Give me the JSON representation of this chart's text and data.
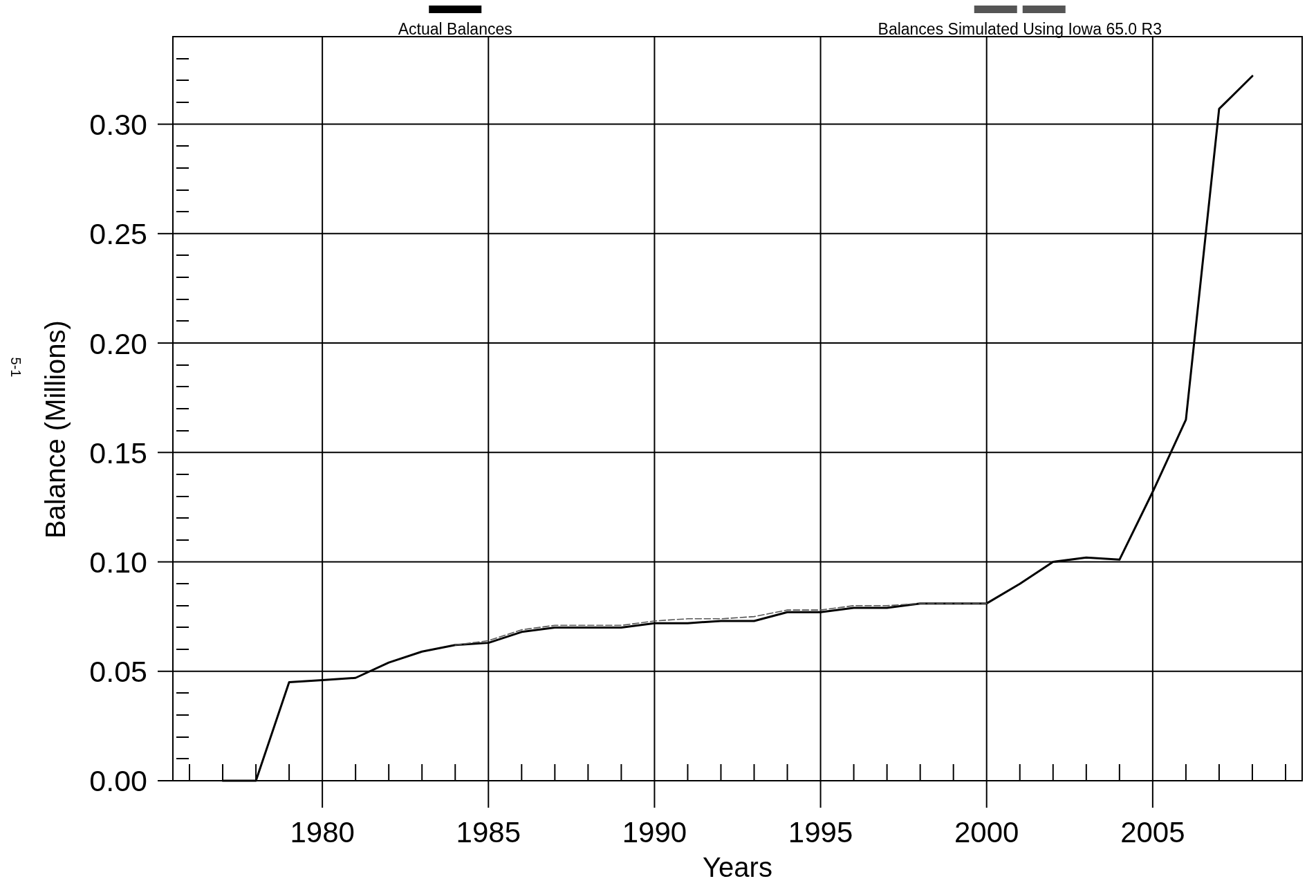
{
  "chart_data": {
    "type": "line",
    "xlabel": "Years",
    "ylabel": "Balance (Millions)",
    "annotations": [
      "5-1"
    ],
    "xlim": [
      1975.5,
      2009.5
    ],
    "xticks": [
      1980,
      1985,
      1990,
      1995,
      2000,
      2005
    ],
    "ylim": [
      0,
      0.34
    ],
    "yticks": [
      {
        "value": 0,
        "label": "0.00"
      },
      {
        "value": 0.05,
        "label": "0.05"
      },
      {
        "value": 0.1,
        "label": "0.10"
      },
      {
        "value": 0.15,
        "label": "0.15"
      },
      {
        "value": 0.2,
        "label": "0.20"
      },
      {
        "value": 0.25,
        "label": "0.25"
      },
      {
        "value": 0.3,
        "label": "0.30"
      }
    ],
    "grid": true,
    "legend": "top",
    "series": [
      {
        "name": "Actual Balances",
        "color": "#000000",
        "line_style": "solid",
        "x": [
          1977,
          1978,
          1979,
          1980,
          1981,
          1982,
          1983,
          1984,
          1985,
          1986,
          1987,
          1988,
          1989,
          1990,
          1991,
          1992,
          1993,
          1994,
          1995,
          1996,
          1997,
          1998,
          1999,
          2000,
          2001,
          2002,
          2003,
          2004,
          2005,
          2006,
          2007,
          2008
        ],
        "values": [
          0,
          0,
          0.045,
          0.046,
          0.047,
          0.054,
          0.059,
          0.062,
          0.063,
          0.068,
          0.07,
          0.07,
          0.07,
          0.072,
          0.072,
          0.073,
          0.073,
          0.077,
          0.077,
          0.079,
          0.079,
          0.081,
          0.081,
          0.081,
          0.09,
          0.1,
          0.102,
          0.101,
          0.132,
          0.165,
          0.307,
          0.322
        ]
      },
      {
        "name": "Balances Simulated Using Iowa 65.0 R3",
        "color": "#555555",
        "line_style": "dashed",
        "x": [
          1984,
          1985,
          1986,
          1987,
          1988,
          1989,
          1990,
          1991,
          1992,
          1993,
          1994,
          1995,
          1996,
          1997,
          1998,
          1999,
          2000
        ],
        "values": [
          0.062,
          0.064,
          0.069,
          0.071,
          0.071,
          0.071,
          0.073,
          0.074,
          0.074,
          0.075,
          0.078,
          0.078,
          0.08,
          0.08,
          0.081,
          0.081,
          0.081
        ]
      }
    ]
  }
}
